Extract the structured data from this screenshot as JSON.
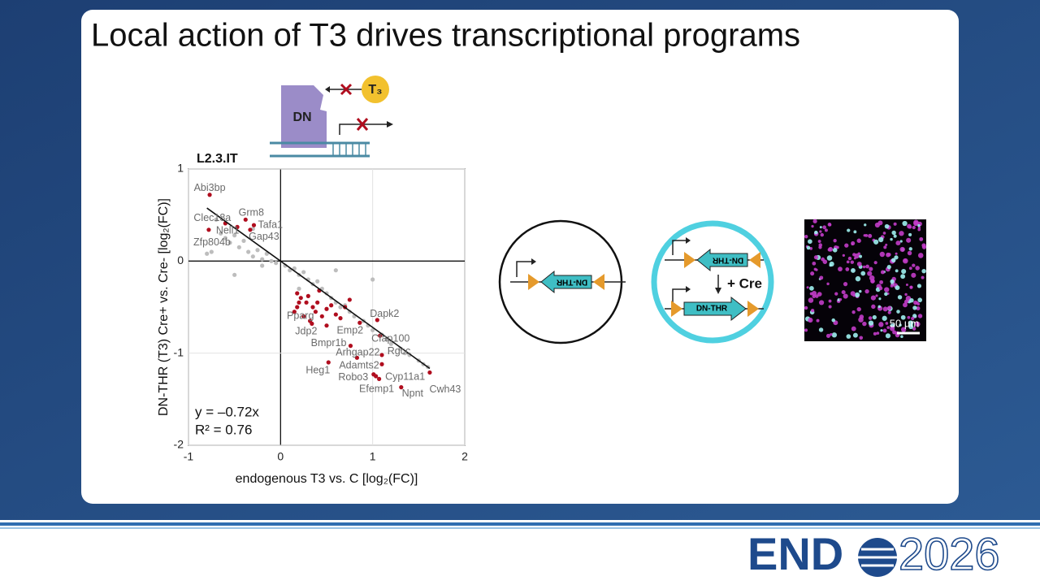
{
  "slide_title": "Local action of T3 drives transcriptional programs",
  "schematic": {
    "protein": "DN",
    "hormone": "T₃"
  },
  "constructs": {
    "cassette_off": "DN-THR",
    "cassette_inverted": "DN-THR",
    "recombinase": "+ Cre",
    "cassette_on": "DN-THR"
  },
  "micrograph": {
    "scale_bar": "50 µm"
  },
  "logo": {
    "left": "END",
    "right": "2026"
  },
  "chart_data": {
    "type": "scatter",
    "title": "L2.3.IT",
    "x_label": "endogenous T3 vs. C [log₂(FC)]",
    "y_label": "DN-THR (T3) Cre+ vs. Cre- [log₂(FC)]",
    "xlim": [
      -1,
      2
    ],
    "ylim": [
      -2,
      1
    ],
    "xticks": [
      -1,
      0,
      1,
      2
    ],
    "yticks": [
      -2,
      -1,
      0,
      1
    ],
    "grid": true,
    "fit_slope": -0.72,
    "equation": "y = –0.72x",
    "r_squared": "R² = 0.76",
    "fit_color": "#111111",
    "series": [
      {
        "color": "#bdbdbd",
        "x": [
          -0.8,
          -0.75,
          -0.7,
          -0.65,
          -0.6,
          -0.55,
          -0.5,
          -0.45,
          -0.4,
          -0.35,
          -0.3,
          -0.25,
          -0.2,
          -0.2,
          -0.15,
          -0.1,
          -0.5,
          -0.05,
          0.05,
          0.1,
          0.15,
          0.2,
          0.25,
          0.3,
          0.35,
          0.4,
          0.45,
          0.5,
          0.55,
          0.6,
          0.65,
          0.7,
          0.75,
          0.8,
          0.9,
          0.95,
          1.0,
          1.1,
          1.15,
          1.2,
          1.3,
          1.35,
          1.4,
          1.5,
          1.55,
          1.6,
          1.0,
          0.6,
          0.2,
          -0.3
        ],
        "y": [
          0.08,
          0.1,
          0.45,
          0.3,
          0.25,
          0.2,
          0.28,
          0.15,
          0.22,
          0.1,
          0.05,
          0.12,
          0.02,
          -0.05,
          0.08,
          0.0,
          -0.15,
          -0.02,
          -0.05,
          -0.1,
          -0.08,
          -0.15,
          -0.12,
          -0.2,
          -0.25,
          -0.22,
          -0.3,
          -0.35,
          -0.4,
          -0.45,
          -0.5,
          -0.48,
          -0.55,
          -0.6,
          -0.65,
          -0.7,
          -0.75,
          -0.8,
          -0.85,
          -0.9,
          -0.95,
          -1.0,
          -1.02,
          -1.08,
          -1.12,
          -1.15,
          -0.2,
          -0.1,
          -0.3,
          0.35
        ]
      },
      {
        "color": "#b00d1e",
        "x": [
          -0.77,
          -0.6,
          -0.38,
          -0.29,
          -0.47,
          -0.33,
          -0.78,
          0.18,
          0.34,
          0.86,
          1.05,
          1.08,
          0.76,
          0.83,
          1.1,
          1.1,
          0.52,
          1.01,
          1.035,
          1.07,
          1.31,
          1.62,
          0.18,
          0.22,
          0.28,
          0.3,
          0.35,
          0.38,
          0.4,
          0.45,
          0.5,
          0.55,
          0.6,
          0.65,
          0.7,
          0.25,
          0.32,
          0.42,
          0.15,
          0.5,
          0.2,
          0.75
        ],
        "y": [
          0.72,
          0.41,
          0.45,
          0.39,
          0.37,
          0.34,
          0.34,
          -0.5,
          -0.68,
          -0.67,
          -0.64,
          -0.81,
          -0.92,
          -1.05,
          -1.02,
          -1.12,
          -1.1,
          -1.23,
          -1.25,
          -1.28,
          -1.37,
          -1.21,
          -0.35,
          -0.4,
          -0.45,
          -0.38,
          -0.5,
          -0.55,
          -0.45,
          -0.6,
          -0.52,
          -0.48,
          -0.58,
          -0.62,
          -0.5,
          -0.6,
          -0.65,
          -0.32,
          -0.55,
          -0.7,
          -0.45,
          -0.42
        ],
        "labels": [
          "Abi3bp",
          "Clec18a",
          "Grm8",
          "Tafa1",
          "Nell1",
          "Gap43",
          "Zfp804b",
          "Pparg",
          "Jdp2",
          "Emp2",
          "Dapk2",
          "Cfap100",
          "Bmpr1b",
          "Arhgap22",
          "Rgcc",
          "Adamts2",
          "Heg1",
          "Robo3",
          "Cyp11a1",
          "Efemp1",
          "Npnt",
          "Cwh43",
          null,
          null,
          null,
          null,
          null,
          null,
          null,
          null,
          null,
          null,
          null,
          null,
          null,
          null,
          null,
          null,
          null,
          null,
          null,
          null
        ]
      }
    ]
  }
}
